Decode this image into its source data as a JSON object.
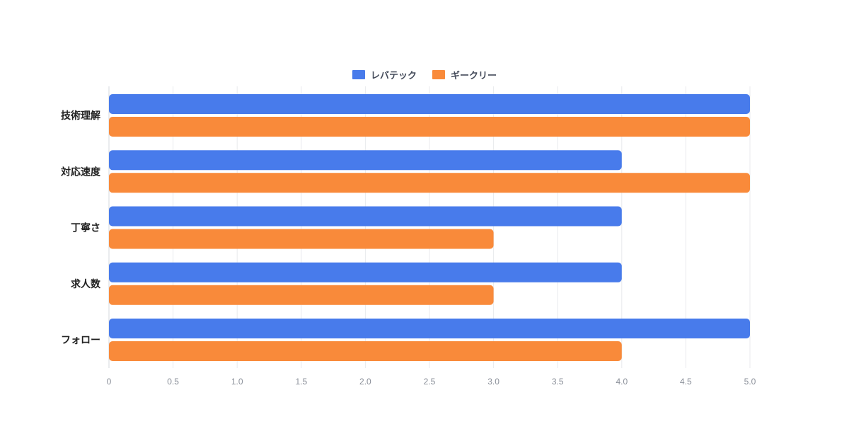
{
  "chart_data": {
    "type": "bar",
    "orientation": "horizontal",
    "title": "",
    "xlabel": "",
    "ylabel": "",
    "categories": [
      "技術理解",
      "対応速度",
      "丁寧さ",
      "求人数",
      "フォロー"
    ],
    "series": [
      {
        "name": "レバテック",
        "color": "#487BEB",
        "values": [
          5,
          4,
          4,
          4,
          5
        ]
      },
      {
        "name": "ギークリー",
        "color": "#F98A3A",
        "values": [
          5,
          5,
          3,
          3,
          4
        ]
      }
    ],
    "xlim": [
      0,
      5
    ],
    "xticks": [
      "0",
      "0.5",
      "1.0",
      "1.5",
      "2.0",
      "2.5",
      "3.0",
      "3.5",
      "4.0",
      "4.5",
      "5.0"
    ],
    "grid": true,
    "legend_position": "top-center"
  }
}
